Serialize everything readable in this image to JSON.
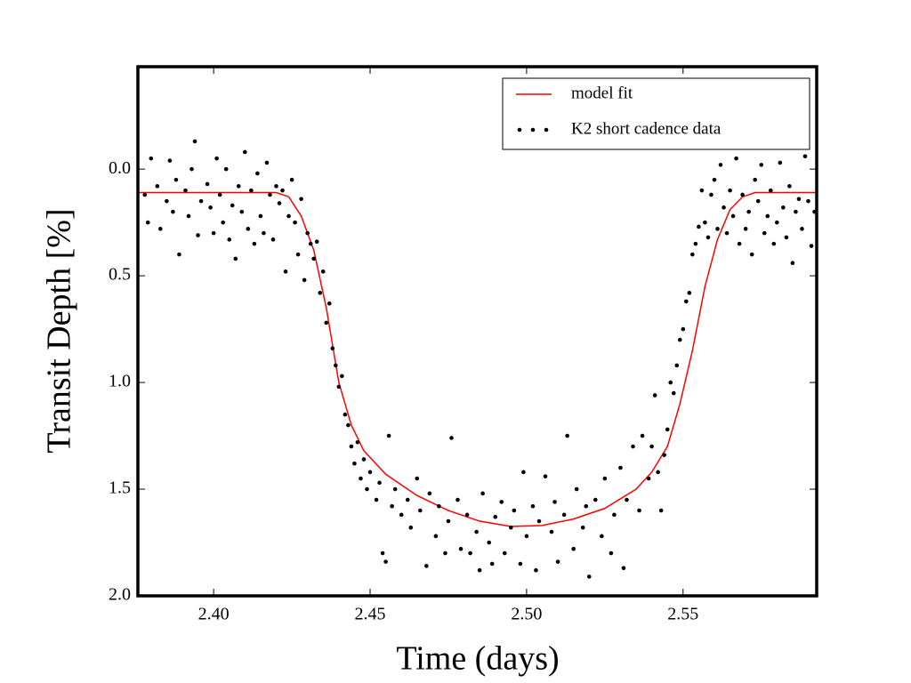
{
  "chart_data": {
    "type": "scatter",
    "xlabel": "Time (days)",
    "ylabel": "Transit Depth [%]",
    "xlim": [
      2.3758,
      2.5927
    ],
    "ylim": [
      2.0,
      -0.48
    ],
    "xticks": [
      {
        "value": 2.4,
        "label": "2.40"
      },
      2.45,
      {
        "value": 2.5,
        "label": "2.50"
      },
      2.55
    ],
    "yticks": [
      {
        "value": 0,
        "label": "0.0"
      },
      0.5,
      {
        "value": 1,
        "label": "1.0"
      },
      1.5,
      {
        "value": 2,
        "label": "2.0"
      }
    ],
    "legend": "upper right",
    "series": [
      {
        "name": "model fit",
        "color": "#ff0000",
        "type": "line",
        "x": [
          2.3758,
          2.42,
          2.424,
          2.428,
          2.432,
          2.436,
          2.44,
          2.444,
          2.448,
          2.455,
          2.465,
          2.475,
          2.485,
          2.495,
          2.505,
          2.515,
          2.525,
          2.535,
          2.54,
          2.545,
          2.549,
          2.553,
          2.557,
          2.561,
          2.565,
          2.569,
          2.573,
          2.5927
        ],
        "values": [
          0.11,
          0.11,
          0.13,
          0.22,
          0.38,
          0.65,
          1.0,
          1.2,
          1.32,
          1.43,
          1.53,
          1.6,
          1.65,
          1.675,
          1.67,
          1.64,
          1.59,
          1.5,
          1.42,
          1.3,
          1.1,
          0.85,
          0.55,
          0.33,
          0.19,
          0.13,
          0.11,
          0.11
        ]
      },
      {
        "name": "K2 short cadence data",
        "color": "#000000",
        "type": "scatter",
        "x": [
          2.378,
          2.379,
          2.38,
          2.382,
          2.383,
          2.385,
          2.386,
          2.387,
          2.388,
          2.389,
          2.391,
          2.392,
          2.393,
          2.394,
          2.395,
          2.396,
          2.398,
          2.399,
          2.4,
          2.401,
          2.402,
          2.403,
          2.404,
          2.405,
          2.406,
          2.407,
          2.408,
          2.409,
          2.41,
          2.411,
          2.412,
          2.413,
          2.414,
          2.415,
          2.416,
          2.417,
          2.418,
          2.419,
          2.42,
          2.421,
          2.422,
          2.423,
          2.424,
          2.425,
          2.426,
          2.427,
          2.428,
          2.429,
          2.43,
          2.431,
          2.432,
          2.433,
          2.434,
          2.435,
          2.436,
          2.437,
          2.438,
          2.439,
          2.44,
          2.441,
          2.442,
          2.443,
          2.444,
          2.445,
          2.446,
          2.447,
          2.448,
          2.449,
          2.45,
          2.452,
          2.453,
          2.454,
          2.455,
          2.456,
          2.457,
          2.458,
          2.46,
          2.462,
          2.463,
          2.465,
          2.466,
          2.468,
          2.469,
          2.471,
          2.472,
          2.474,
          2.475,
          2.476,
          2.478,
          2.479,
          2.481,
          2.482,
          2.484,
          2.485,
          2.486,
          2.488,
          2.489,
          2.49,
          2.492,
          2.493,
          2.495,
          2.496,
          2.498,
          2.499,
          2.5,
          2.502,
          2.503,
          2.504,
          2.506,
          2.508,
          2.509,
          2.51,
          2.512,
          2.513,
          2.515,
          2.516,
          2.518,
          2.519,
          2.52,
          2.522,
          2.524,
          2.525,
          2.527,
          2.528,
          2.53,
          2.531,
          2.532,
          2.534,
          2.536,
          2.537,
          2.539,
          2.54,
          2.541,
          2.542,
          2.543,
          2.544,
          2.545,
          2.546,
          2.547,
          2.548,
          2.549,
          2.55,
          2.551,
          2.552,
          2.553,
          2.554,
          2.555,
          2.556,
          2.557,
          2.558,
          2.559,
          2.56,
          2.561,
          2.562,
          2.563,
          2.564,
          2.565,
          2.566,
          2.567,
          2.568,
          2.569,
          2.57,
          2.571,
          2.572,
          2.573,
          2.574,
          2.575,
          2.576,
          2.577,
          2.578,
          2.579,
          2.58,
          2.581,
          2.582,
          2.583,
          2.584,
          2.585,
          2.586,
          2.587,
          2.588,
          2.589,
          2.59,
          2.591,
          2.592
        ],
        "values": [
          0.12,
          0.25,
          -0.05,
          0.08,
          0.28,
          0.15,
          -0.04,
          0.2,
          0.05,
          0.4,
          0.1,
          0.22,
          0.0,
          -0.13,
          0.31,
          0.15,
          0.07,
          0.18,
          0.3,
          -0.05,
          0.12,
          0.25,
          0.0,
          0.33,
          0.17,
          0.42,
          0.08,
          0.2,
          -0.08,
          0.28,
          0.1,
          0.35,
          0.02,
          0.22,
          0.3,
          -0.03,
          0.12,
          0.33,
          0.08,
          0.16,
          0.1,
          0.48,
          0.22,
          0.05,
          0.25,
          0.4,
          0.14,
          0.52,
          0.3,
          0.35,
          0.42,
          0.34,
          0.58,
          0.48,
          0.72,
          0.63,
          0.84,
          0.92,
          1.02,
          0.97,
          1.15,
          1.2,
          1.3,
          1.38,
          1.28,
          1.45,
          1.36,
          1.5,
          1.42,
          1.55,
          1.47,
          1.8,
          1.84,
          1.25,
          1.58,
          1.5,
          1.62,
          1.55,
          1.68,
          1.45,
          1.6,
          1.86,
          1.52,
          1.72,
          1.58,
          1.8,
          1.65,
          1.26,
          1.55,
          1.78,
          1.62,
          1.8,
          1.7,
          1.88,
          1.52,
          1.75,
          1.85,
          1.63,
          1.56,
          1.8,
          1.68,
          1.6,
          1.85,
          1.42,
          1.72,
          1.58,
          1.88,
          1.65,
          1.44,
          1.7,
          1.56,
          1.84,
          1.62,
          1.25,
          1.78,
          1.5,
          1.68,
          1.58,
          1.91,
          1.55,
          1.72,
          1.45,
          1.8,
          1.62,
          1.4,
          1.87,
          1.55,
          1.3,
          1.6,
          1.25,
          1.45,
          1.3,
          1.06,
          1.42,
          1.6,
          1.34,
          1.22,
          1.0,
          1.05,
          0.92,
          0.8,
          0.75,
          0.62,
          0.58,
          0.4,
          0.35,
          0.27,
          0.1,
          0.25,
          0.32,
          0.12,
          0.05,
          0.28,
          -0.02,
          0.18,
          0.3,
          0.1,
          0.22,
          -0.05,
          0.35,
          0.12,
          0.28,
          0.2,
          0.4,
          0.05,
          0.15,
          -0.02,
          0.3,
          0.22,
          0.1,
          0.35,
          0.25,
          -0.03,
          0.18,
          0.32,
          0.08,
          0.44,
          0.2,
          0.14,
          0.28,
          -0.06,
          0.15,
          0.36,
          0.2
        ]
      }
    ]
  }
}
